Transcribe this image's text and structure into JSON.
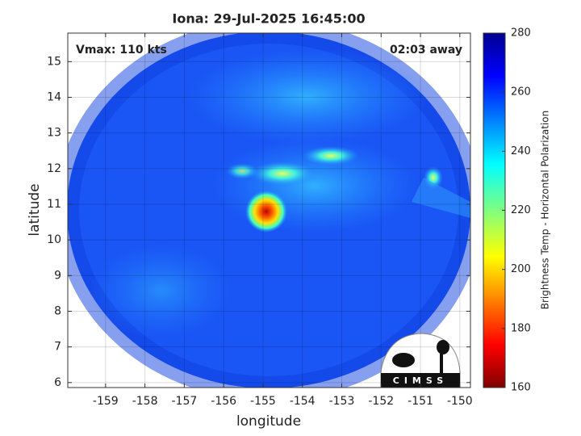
{
  "chart_data": {
    "type": "image",
    "title": "Iona: 29-Jul-2025 16:45:00",
    "annotations": [
      "Vmax: 110 kts",
      "02:03 away"
    ],
    "x_label": "longitude",
    "y_label": "latitude",
    "xlim": [
      -159.96,
      -149.73
    ],
    "xticks": [
      -159,
      -158,
      -157,
      -156,
      -155,
      -154,
      -153,
      -152,
      -151,
      -150
    ],
    "ylim": [
      5.86,
      15.8
    ],
    "yticks": [
      6,
      7,
      8,
      9,
      10,
      11,
      12,
      13,
      14,
      15
    ],
    "grid": true,
    "colorbar": {
      "label": "Brightness Temp - Horizontal Polarization",
      "colormap": "jet",
      "clim": [
        160,
        280
      ],
      "ticks": [
        160,
        180,
        200,
        220,
        240,
        260,
        280
      ]
    },
    "logo": "CIMSS"
  }
}
